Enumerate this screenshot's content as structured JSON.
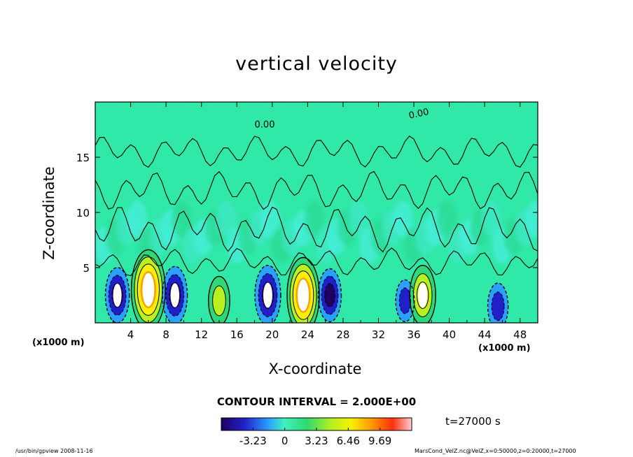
{
  "chart_data": {
    "type": "heatmap",
    "title": "vertical velocity",
    "xlabel": "X-coordinate",
    "ylabel": "Z-coordinate",
    "x_unit": "(x1000 m)",
    "y_unit": "(x1000 m)",
    "xlim": [
      0,
      50
    ],
    "ylim": [
      0,
      20
    ],
    "x_ticks": [
      "4",
      "8",
      "12",
      "16",
      "20",
      "24",
      "28",
      "32",
      "36",
      "40",
      "44",
      "48"
    ],
    "y_ticks": [
      "5",
      "10",
      "15"
    ],
    "contour_labels": [
      "0.00",
      "0.00"
    ],
    "contour_interval": "CONTOUR INTERVAL = 2.000E+00",
    "colorbar_ticks": [
      "-3.23",
      "0",
      "3.23",
      "6.46",
      "9.69"
    ],
    "colorbar_range": [
      -6.46,
      12.92
    ],
    "cells": [
      {
        "x": 2.5,
        "z": 2.5,
        "w": -5.5
      },
      {
        "x": 6.0,
        "z": 3.0,
        "w": 11.0
      },
      {
        "x": 9.0,
        "z": 2.5,
        "w": -6.0
      },
      {
        "x": 14.0,
        "z": 2.0,
        "w": 4.0
      },
      {
        "x": 19.5,
        "z": 2.5,
        "w": -6.5
      },
      {
        "x": 23.5,
        "z": 2.5,
        "w": 10.0
      },
      {
        "x": 26.5,
        "z": 2.5,
        "w": -5.0
      },
      {
        "x": 35.0,
        "z": 2.0,
        "w": -2.5
      },
      {
        "x": 37.0,
        "z": 2.5,
        "w": 6.5
      },
      {
        "x": 45.5,
        "z": 1.5,
        "w": -3.5
      }
    ],
    "colors": {
      "background": "#30e8a8",
      "strong_down": "#ffffff",
      "up_peak": "#ff2a10",
      "contour": "#000000"
    },
    "time_label": "t=27000 s"
  },
  "footer": {
    "left": "/usr/bin/gpview   2008-11-16",
    "right": "MarsCond_VelZ.nc@VelZ,x=0:50000,z=0:20000,t=27000"
  }
}
